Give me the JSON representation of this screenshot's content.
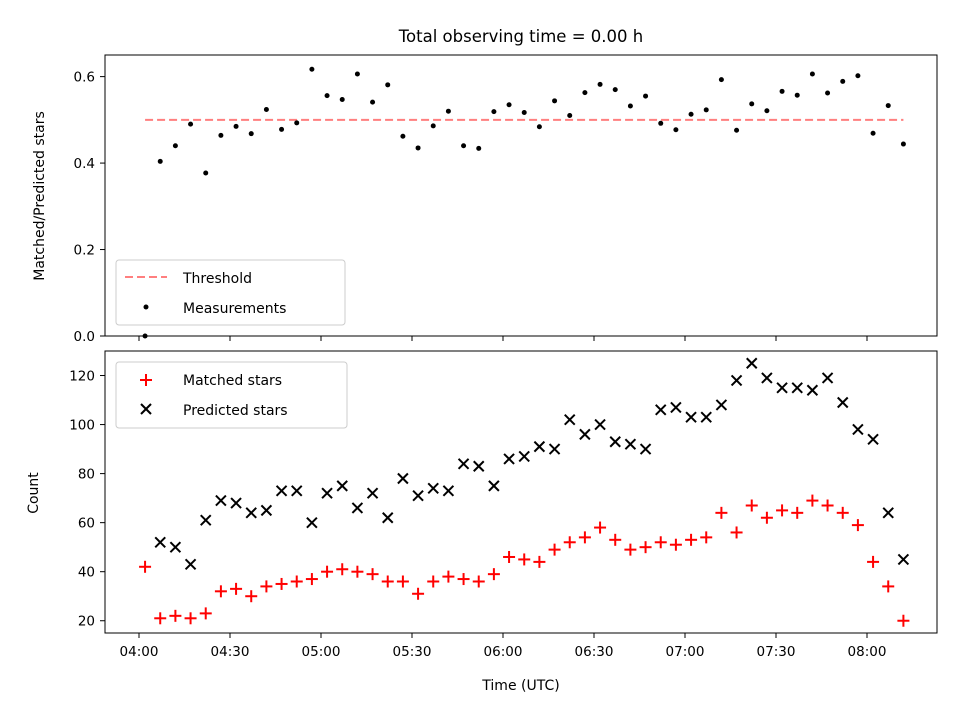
{
  "chart_data": [
    {
      "type": "scatter",
      "title": "Total observing time = 0.00 h",
      "xlabel": "",
      "ylabel": "Matched/Predicted stars",
      "ylim": [
        0,
        0.65
      ],
      "y_ticks": [
        "0.0",
        "0.2",
        "0.4",
        "0.6"
      ],
      "legend_placement": "lower-left",
      "series": [
        {
          "name": "Threshold",
          "kind": "dashed-line",
          "color": "#ff7f7f",
          "x": [
            "04:02",
            "08:12"
          ],
          "y": [
            0.5,
            0.5
          ]
        },
        {
          "name": "Measurements",
          "kind": "points",
          "color": "#000000",
          "x": [
            "04:02",
            "04:07",
            "04:12",
            "04:17",
            "04:22",
            "04:27",
            "04:32",
            "04:37",
            "04:42",
            "04:47",
            "04:52",
            "04:57",
            "05:02",
            "05:07",
            "05:12",
            "05:17",
            "05:22",
            "05:27",
            "05:32",
            "05:37",
            "05:42",
            "05:47",
            "05:52",
            "05:57",
            "06:02",
            "06:07",
            "06:12",
            "06:17",
            "06:22",
            "06:27",
            "06:32",
            "06:37",
            "06:42",
            "06:47",
            "06:52",
            "06:57",
            "07:02",
            "07:07",
            "07:12",
            "07:17",
            "07:22",
            "07:27",
            "07:32",
            "07:37",
            "07:42",
            "07:47",
            "07:52",
            "07:57",
            "08:02",
            "08:07",
            "08:12"
          ],
          "y": [
            0.0,
            0.404,
            0.44,
            0.49,
            0.377,
            0.464,
            0.485,
            0.468,
            0.524,
            0.478,
            0.493,
            0.617,
            0.556,
            0.547,
            0.606,
            0.541,
            0.581,
            0.462,
            0.435,
            0.486,
            0.52,
            0.44,
            0.434,
            0.519,
            0.535,
            0.517,
            0.484,
            0.544,
            0.51,
            0.563,
            0.582,
            0.57,
            0.532,
            0.555,
            0.492,
            0.477,
            0.513,
            0.523,
            0.593,
            0.476,
            0.537,
            0.521,
            0.566,
            0.557,
            0.606,
            0.562,
            0.589,
            0.602,
            0.469,
            0.533,
            0.444
          ]
        }
      ]
    },
    {
      "type": "scatter",
      "title": "",
      "xlabel": "Time (UTC)",
      "ylabel": "Count",
      "ylim": [
        15,
        130
      ],
      "y_ticks": [
        "20",
        "40",
        "60",
        "80",
        "100",
        "120"
      ],
      "x_ticks": [
        "04:00",
        "04:30",
        "05:00",
        "05:30",
        "06:00",
        "06:30",
        "07:00",
        "07:30",
        "08:00"
      ],
      "legend_placement": "upper-left",
      "series": [
        {
          "name": "Matched stars",
          "kind": "plus",
          "color": "#ff0000",
          "x": [
            "04:02",
            "04:07",
            "04:12",
            "04:17",
            "04:22",
            "04:27",
            "04:32",
            "04:37",
            "04:42",
            "04:47",
            "04:52",
            "04:57",
            "05:02",
            "05:07",
            "05:12",
            "05:17",
            "05:22",
            "05:27",
            "05:32",
            "05:37",
            "05:42",
            "05:47",
            "05:52",
            "05:57",
            "06:02",
            "06:07",
            "06:12",
            "06:17",
            "06:22",
            "06:27",
            "06:32",
            "06:37",
            "06:42",
            "06:47",
            "06:52",
            "06:57",
            "07:02",
            "07:07",
            "07:12",
            "07:17",
            "07:22",
            "07:27",
            "07:32",
            "07:37",
            "07:42",
            "07:47",
            "07:52",
            "07:57",
            "08:02",
            "08:07",
            "08:12"
          ],
          "y": [
            42,
            21,
            22,
            21,
            23,
            32,
            33,
            30,
            34,
            35,
            36,
            37,
            40,
            41,
            40,
            39,
            36,
            36,
            31,
            36,
            38,
            37,
            36,
            39,
            46,
            45,
            44,
            49,
            52,
            54,
            58,
            53,
            49,
            50,
            52,
            51,
            53,
            54,
            64,
            56,
            67,
            62,
            65,
            64,
            69,
            67,
            64,
            59,
            44,
            34,
            20
          ]
        },
        {
          "name": "Predicted stars",
          "kind": "x",
          "color": "#000000",
          "x": [
            "04:07",
            "04:12",
            "04:17",
            "04:22",
            "04:27",
            "04:32",
            "04:37",
            "04:42",
            "04:47",
            "04:52",
            "04:57",
            "05:02",
            "05:07",
            "05:12",
            "05:17",
            "05:22",
            "05:27",
            "05:32",
            "05:37",
            "05:42",
            "05:47",
            "05:52",
            "05:57",
            "06:02",
            "06:07",
            "06:12",
            "06:17",
            "06:22",
            "06:27",
            "06:32",
            "06:37",
            "06:42",
            "06:47",
            "06:52",
            "06:57",
            "07:02",
            "07:07",
            "07:12",
            "07:17",
            "07:22",
            "07:27",
            "07:32",
            "07:37",
            "07:42",
            "07:47",
            "07:52",
            "07:57",
            "08:02",
            "08:07",
            "08:12"
          ],
          "y": [
            52,
            50,
            43,
            61,
            69,
            68,
            64,
            65,
            73,
            73,
            60,
            72,
            75,
            66,
            72,
            62,
            78,
            71,
            74,
            73,
            84,
            83,
            75,
            86,
            87,
            91,
            90,
            102,
            96,
            100,
            93,
            92,
            90,
            106,
            107,
            103,
            103,
            108,
            118,
            125,
            119,
            115,
            115,
            114,
            119,
            109,
            98,
            94,
            64,
            45
          ]
        }
      ]
    }
  ]
}
